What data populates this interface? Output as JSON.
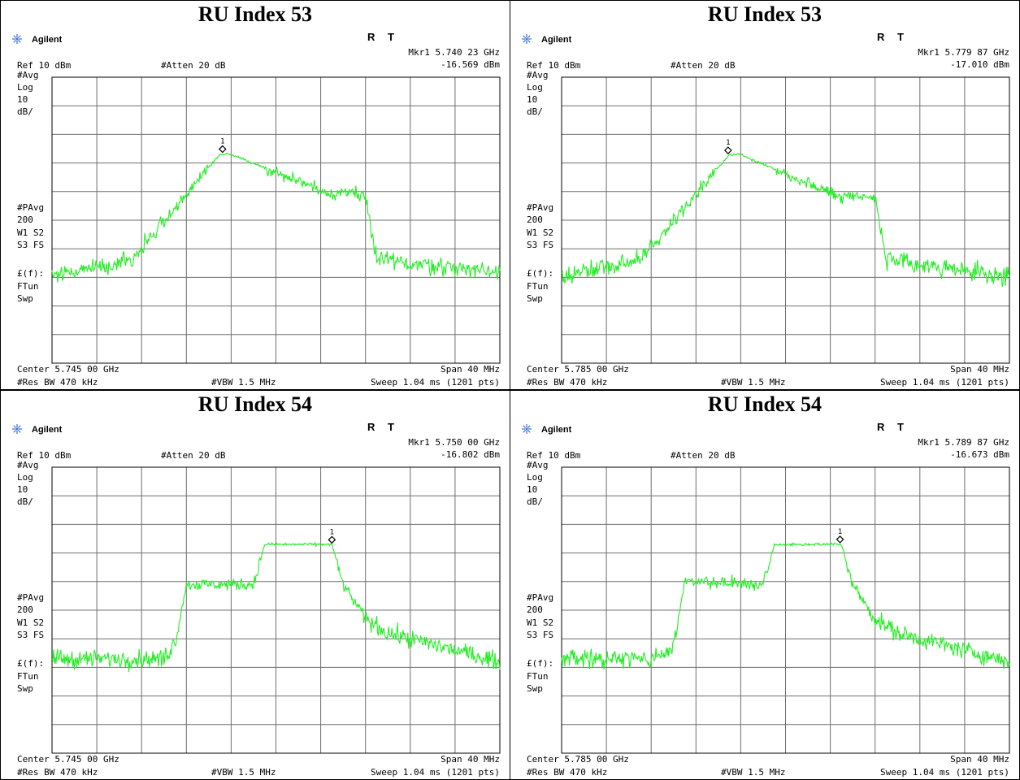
{
  "instrument": {
    "brand": "Agilent",
    "logo_icon": "agilent-spark-icon",
    "status_r": "R",
    "status_t": "T",
    "ref_label": "Ref 10 dBm",
    "atten_label": "#Atten 20 dB",
    "span_label": "Span 40 MHz",
    "rbw_label": "#Res BW 470 kHz",
    "vbw_label": "#VBW 1.5 MHz",
    "sweep_label": "Sweep 1.04 ms (1201 pts)",
    "left_annotations": [
      "#Avg",
      "Log",
      "10",
      "dB/",
      "#PAvg",
      "200",
      "W1  S2",
      "S3  FS",
      "£(f):",
      "FTun",
      "Swp"
    ]
  },
  "colors": {
    "trace": "#22ee22",
    "grid": "#6f6f6f",
    "border": "#000000"
  },
  "chart_data": [
    {
      "type": "line",
      "panel_title": "RU Index 53",
      "center_label": "Center 5.745 00 GHz",
      "marker_label": "Mkr1  5.740 23 GHz",
      "marker_value": "-16.569 dBm",
      "marker_number": "1",
      "center_ghz": 5.745,
      "span_mhz": 40,
      "ref_dbm": 10,
      "db_per_div": 10,
      "ylim": [
        -90,
        10
      ],
      "marker_freq_ghz": 5.74023,
      "marker_dbm": -16.569,
      "breakpoints_mhz": [
        -20,
        -17,
        -13,
        -12,
        -11,
        -5,
        -4,
        5,
        6,
        8,
        9,
        20
      ],
      "levels_dbm": [
        -59,
        -57,
        -54,
        -50,
        -45,
        -17,
        -17,
        -31,
        -30,
        -31,
        -54,
        -58
      ]
    },
    {
      "type": "line",
      "panel_title": "RU Index 53",
      "center_label": "Center 5.785 00 GHz",
      "marker_label": "Mkr1  5.779 87 GHz",
      "marker_value": "-17.010 dBm",
      "marker_number": "1",
      "center_ghz": 5.785,
      "span_mhz": 40,
      "ref_dbm": 10,
      "db_per_div": 10,
      "ylim": [
        -90,
        10
      ],
      "marker_freq_ghz": 5.77987,
      "marker_dbm": -17.01,
      "breakpoints_mhz": [
        -20,
        -17,
        -13,
        -12,
        -11,
        -5,
        -4,
        5,
        6,
        8,
        9,
        20
      ],
      "levels_dbm": [
        -60,
        -57,
        -54,
        -50,
        -45,
        -17,
        -17,
        -32,
        -31,
        -32,
        -54,
        -60
      ]
    },
    {
      "type": "line",
      "panel_title": "RU Index 54",
      "center_label": "Center 5.745 00 GHz",
      "marker_label": "Mkr1  5.750 00 GHz",
      "marker_value": "-16.802 dBm",
      "marker_number": "1",
      "center_ghz": 5.745,
      "span_mhz": 40,
      "ref_dbm": 10,
      "db_per_div": 10,
      "ylim": [
        -90,
        10
      ],
      "marker_freq_ghz": 5.75,
      "marker_dbm": -16.802,
      "breakpoints_mhz": [
        -20,
        -10,
        -9,
        -8,
        -2,
        -1,
        5,
        6,
        8,
        10,
        20
      ],
      "levels_dbm": [
        -57,
        -57,
        -51,
        -31,
        -31,
        -17,
        -17,
        -31,
        -43,
        -48,
        -58
      ]
    },
    {
      "type": "line",
      "panel_title": "RU Index 54",
      "center_label": "Center 5.785 00 GHz",
      "marker_label": "Mkr1  5.789 87 GHz",
      "marker_value": "-16.673 dBm",
      "marker_number": "1",
      "center_ghz": 5.785,
      "span_mhz": 40,
      "ref_dbm": 10,
      "db_per_div": 10,
      "ylim": [
        -90,
        10
      ],
      "marker_freq_ghz": 5.78987,
      "marker_dbm": -16.673,
      "breakpoints_mhz": [
        -20,
        -12,
        -10,
        -9,
        -2,
        -1,
        5,
        6,
        8,
        10,
        20
      ],
      "levels_dbm": [
        -57,
        -57,
        -53,
        -30,
        -31,
        -17,
        -17,
        -31,
        -43,
        -48,
        -58
      ]
    }
  ]
}
